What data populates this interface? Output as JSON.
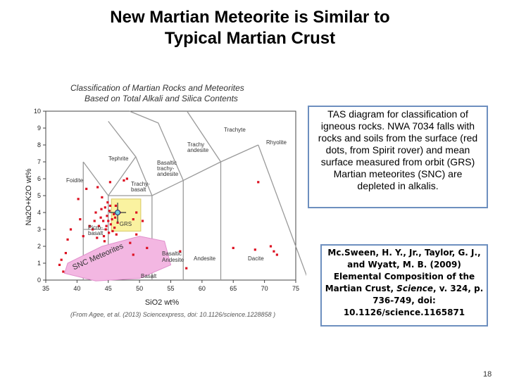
{
  "slide": {
    "title_line1": "New Martian Meteorite is Similar to",
    "title_line2": "Typical Martian Crust",
    "page_number": "18"
  },
  "figure": {
    "title_line1": "Classification of Martian Rocks and Meteorites",
    "title_line2": "Based on Total Alkali and Silica Contents",
    "caption": "(From Agee, et al. (2013) Sciencexpress, doi: 10.1126/science.1228858 )",
    "meteorite_field_label": "SNC Meteorites",
    "grs_label": "GRS",
    "field_labels": {
      "foidite": "Foidite",
      "tephrite": "Tephrite",
      "trachy_basalt_1": "Trachy-",
      "trachy_basalt_2": "basalt",
      "basaltic_trachy_andesite_1": "Basaltic",
      "basaltic_trachy_andesite_2": "trachy-",
      "basaltic_trachy_andesite_3": "andesite",
      "trachy_andesite_1": "Trachy",
      "trachy_andesite_2": "andesite",
      "trachyte": "Trachyte",
      "rhyolite": "Rhyolite",
      "picro_basalt_1": "Picro-",
      "picro_basalt_2": "basalt",
      "basalt": "Basalt",
      "basaltic_andesite_1": "Basaltic",
      "basaltic_andesite_2": "Andesite",
      "andesite": "Andesite",
      "dacite": "Dacite"
    }
  },
  "chart_data": {
    "type": "scatter",
    "title": "Classification of Martian Rocks and Meteorites Based on Total Alkali and Silica Contents",
    "xlabel": "SiO2 wt%",
    "ylabel": "Na2O+K2O wt%",
    "xlim": [
      35,
      75
    ],
    "ylim": [
      0,
      10
    ],
    "x_ticks": [
      35,
      40,
      45,
      50,
      55,
      60,
      65,
      70,
      75
    ],
    "y_ticks": [
      0,
      1,
      2,
      3,
      4,
      5,
      6,
      7,
      8,
      9,
      10
    ],
    "series": [
      {
        "color": "#dd1122",
        "points": [
          [
            44.5,
            4.3
          ],
          [
            45.2,
            4.1
          ],
          [
            44.8,
            3.8
          ],
          [
            45.6,
            3.6
          ],
          [
            44.2,
            3.5
          ],
          [
            45.9,
            3.9
          ],
          [
            46.2,
            4.4
          ],
          [
            44.9,
            4.6
          ],
          [
            45.4,
            3.3
          ],
          [
            46.0,
            3.1
          ],
          [
            44.6,
            3.0
          ],
          [
            43.8,
            3.7
          ],
          [
            43.5,
            3.2
          ],
          [
            46.5,
            3.4
          ],
          [
            45.1,
            2.8
          ],
          [
            44.3,
            2.6
          ],
          [
            46.8,
            4.0
          ],
          [
            43.9,
            4.2
          ],
          [
            42.8,
            3.5
          ],
          [
            42.5,
            3.0
          ],
          [
            43.2,
            2.5
          ],
          [
            45.7,
            2.9
          ],
          [
            44.0,
            4.9
          ],
          [
            46.3,
            2.7
          ],
          [
            43.0,
            4.0
          ],
          [
            45.0,
            3.5
          ],
          [
            44.7,
            3.2
          ],
          [
            45.3,
            4.4
          ],
          [
            46.1,
            3.7
          ],
          [
            44.4,
            2.3
          ],
          [
            42.0,
            3.2
          ],
          [
            41.0,
            2.6
          ],
          [
            39.0,
            3.0
          ],
          [
            38.5,
            2.4
          ],
          [
            38.2,
            1.6
          ],
          [
            37.5,
            1.2
          ],
          [
            37.2,
            0.9
          ],
          [
            37.8,
            0.5
          ],
          [
            40.2,
            4.8
          ],
          [
            41.5,
            5.4
          ],
          [
            43.3,
            5.5
          ],
          [
            45.3,
            5.8
          ],
          [
            49.0,
            3.6
          ],
          [
            50.5,
            3.5
          ],
          [
            48.5,
            2.2
          ],
          [
            49.5,
            2.7
          ],
          [
            51.2,
            1.9
          ],
          [
            56.5,
            1.7
          ],
          [
            57.5,
            0.7
          ],
          [
            65.0,
            1.9
          ],
          [
            68.5,
            1.8
          ],
          [
            71.5,
            1.7
          ],
          [
            72.0,
            1.5
          ],
          [
            71.0,
            2.0
          ],
          [
            69.0,
            5.8
          ],
          [
            49.0,
            1.5
          ],
          [
            47.5,
            5.9
          ],
          [
            48.0,
            6.0
          ],
          [
            49.5,
            4.0
          ],
          [
            40.5,
            3.6
          ]
        ]
      }
    ],
    "grs_mean": [
      46.5,
      4.0
    ],
    "grs_range": {
      "x": [
        45.5,
        50.2
      ],
      "y": [
        2.9,
        4.8
      ]
    },
    "snc_field": {
      "x_range": [
        38,
        55
      ],
      "y_range": [
        0,
        2.6
      ]
    }
  },
  "text_boxes": {
    "tas_description": "TAS diagram for classification of igneous rocks. NWA 7034 falls with rocks and soils from the surface (red dots, from Spirit rover) and mean surface measured from orbit (GRS) Martian meteorites (SNC) are depleted in alkalis.",
    "reference_part1": "Mc.Sween, H. Y., Jr., Taylor, G. J., and Wyatt, M. B. (2009) Elemental Composition of the Martian Crust, ",
    "reference_journal": "Science",
    "reference_part2": ", v. 324, p. 736-749, doi: 10.1126/science.1165871"
  }
}
